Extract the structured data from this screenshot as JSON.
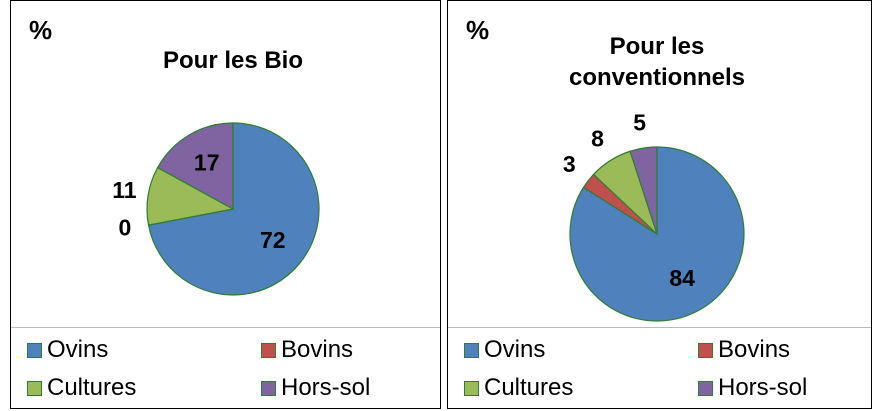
{
  "chart_data": [
    {
      "type": "pie",
      "unit_label": "%",
      "title": "Pour les Bio",
      "categories": [
        "Ovins",
        "Bovins",
        "Cultures",
        "Hors-sol"
      ],
      "values": [
        72,
        0,
        11,
        17
      ],
      "colors": [
        "#4f81bd",
        "#c0504d",
        "#9bbb59",
        "#8064a2"
      ]
    },
    {
      "type": "pie",
      "unit_label": "%",
      "title": "Pour les conventionnels",
      "categories": [
        "Ovins",
        "Bovins",
        "Cultures",
        "Hors-sol"
      ],
      "values": [
        84,
        3,
        8,
        5
      ],
      "colors": [
        "#4f81bd",
        "#c0504d",
        "#9bbb59",
        "#8064a2"
      ]
    }
  ]
}
